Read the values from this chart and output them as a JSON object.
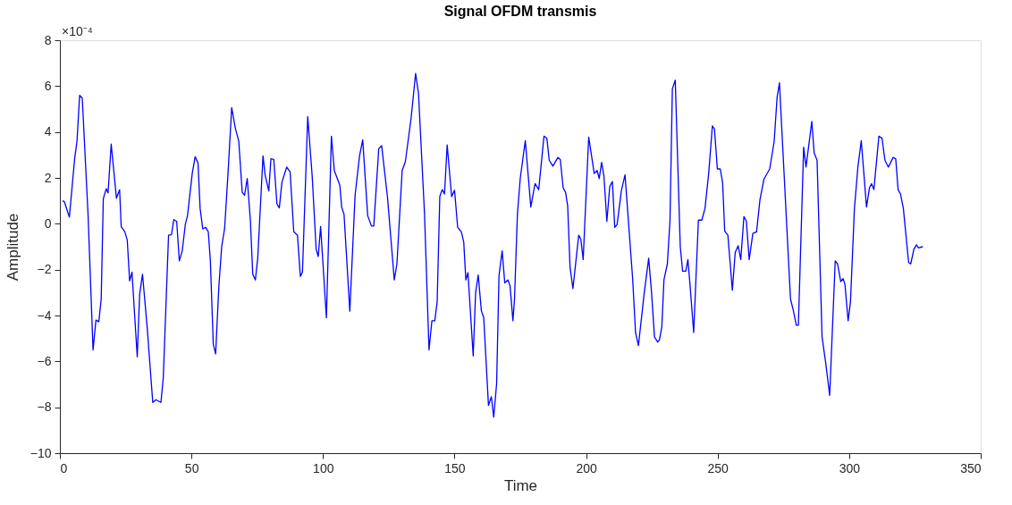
{
  "chart_data": {
    "type": "line",
    "title": "Signal OFDM transmis",
    "xlabel": "Time",
    "ylabel": "Amplitude",
    "annotations": [
      "×10⁻⁴"
    ],
    "xlim": [
      0,
      350
    ],
    "xticks": [
      0,
      50,
      100,
      150,
      200,
      250,
      300,
      350
    ],
    "ylim": [
      -10,
      8
    ],
    "yticks": [
      -10,
      -8,
      -6,
      -4,
      -2,
      0,
      2,
      4,
      6,
      8
    ],
    "grid": false,
    "marker": "none",
    "line_style": "solid",
    "series": [
      {
        "color": "#0000ff",
        "x": [
          1.0,
          1.7,
          3.6,
          5.6,
          6.5,
          7.5,
          8.5,
          10.7,
          12.6,
          13.7,
          14.8,
          15.7,
          16.5,
          17.6,
          18.3,
          19.5,
          21.5,
          22.7,
          23.3,
          24.7,
          25.6,
          26.5,
          27.4,
          29.4,
          30.3,
          31.4,
          33.2,
          35.3,
          36.5,
          38.4,
          39.3,
          41.3,
          42.4,
          43.3,
          44.4,
          45.4,
          46.5,
          47.7,
          48.5,
          50.3,
          51.4,
          52.5,
          53.3,
          54.3,
          55.4,
          56.4,
          57.2,
          58.3,
          59.2,
          60.4,
          61.5,
          62.6,
          63.9,
          65.3,
          66.7,
          68.0,
          69.3,
          70.2,
          71.2,
          72.4,
          73.3,
          74.3,
          75.2,
          77.2,
          78.0,
          79.4,
          80.2,
          81.3,
          82.5,
          83.4,
          84.4,
          86.2,
          87.5,
          88.9,
          90.3,
          91.4,
          92.2,
          94.2,
          95.9,
          97.4,
          98.2,
          99.1,
          101.3,
          103.2,
          104.3,
          106.4,
          107.1,
          108.0,
          110.2,
          112.2,
          113.9,
          115.1,
          117.0,
          118.4,
          119.3,
          121.2,
          122.3,
          124.5,
          127.1,
          128.1,
          130.1,
          131.3,
          133.5,
          135.2,
          136.3,
          138.6,
          140.3,
          141.4,
          142.5,
          143.4,
          144.4,
          145.3,
          146.2,
          147.2,
          148.9,
          150.0,
          151.2,
          152.6,
          153.5,
          154.3,
          155.1,
          157.1,
          158.0,
          159.0,
          160.2,
          161.1,
          162.9,
          164.0,
          164.9,
          166.0,
          166.9,
          168.1,
          169.1,
          170.3,
          171.1,
          172.2,
          172.8,
          173.9,
          175.0,
          176.9,
          179.0,
          180.6,
          182.0,
          184.0,
          185.1,
          186.0,
          187.4,
          189.3,
          190.2,
          191.3,
          192.2,
          193.0,
          193.9,
          195.0,
          197.2,
          198.0,
          198.9,
          201.0,
          203.1,
          204.2,
          205.0,
          205.9,
          206.8,
          207.9,
          209.0,
          210.0,
          210.9,
          211.8,
          213.4,
          214.8,
          217.7,
          218.8,
          219.9,
          222.1,
          223.8,
          224.9,
          226.0,
          227.2,
          227.9,
          228.8,
          229.6,
          230.9,
          231.9,
          232.8,
          233.9,
          235.8,
          236.7,
          237.9,
          238.7,
          239.5,
          240.9,
          242.7,
          244.0,
          245.2,
          246.6,
          248.0,
          248.8,
          249.9,
          251.0,
          251.9,
          252.7,
          253.9,
          255.6,
          256.7,
          257.8,
          258.8,
          260.0,
          260.9,
          262.0,
          263.4,
          264.8,
          266.1,
          267.6,
          269.8,
          271.5,
          272.6,
          273.5,
          277.7,
          278.8,
          279.9,
          280.7,
          282.7,
          283.6,
          285.8,
          286.7,
          287.8,
          289.7,
          291.1,
          292.6,
          294.7,
          295.6,
          296.8,
          297.7,
          298.4,
          299.6,
          300.5,
          302.0,
          303.3,
          304.6,
          306.6,
          307.7,
          308.5,
          309.4,
          311.3,
          312.5,
          313.6,
          314.9,
          316.7,
          317.7,
          318.6,
          319.5,
          320.6,
          322.6,
          323.4,
          324.6,
          325.6,
          326.3,
          328.0
        ],
        "values": [
          1.0,
          0.96,
          0.29,
          2.83,
          3.6,
          5.6,
          5.48,
          0.41,
          -5.5,
          -4.2,
          -4.27,
          -3.28,
          1.09,
          1.53,
          1.34,
          3.47,
          1.11,
          1.48,
          -0.13,
          -0.35,
          -0.71,
          -2.49,
          -2.11,
          -5.8,
          -3.09,
          -2.2,
          -4.55,
          -7.79,
          -7.67,
          -7.79,
          -6.71,
          -0.5,
          -0.48,
          0.18,
          0.1,
          -1.62,
          -1.18,
          -0.01,
          0.35,
          2.19,
          2.92,
          2.64,
          0.67,
          -0.22,
          -0.16,
          -0.35,
          -1.62,
          -5.25,
          -5.67,
          -2.77,
          -0.99,
          -0.22,
          2.19,
          5.06,
          4.16,
          3.59,
          1.37,
          1.24,
          1.97,
          0.16,
          -2.2,
          -2.45,
          -1.5,
          2.96,
          2.13,
          1.43,
          2.83,
          2.8,
          0.86,
          0.69,
          1.81,
          2.47,
          2.26,
          -0.35,
          -0.5,
          -2.29,
          -2.11,
          4.67,
          2.07,
          -1.11,
          -1.43,
          -0.12,
          -4.1,
          3.82,
          2.32,
          1.68,
          0.73,
          0.41,
          -3.81,
          1.24,
          2.96,
          3.66,
          0.35,
          -0.1,
          -0.1,
          3.27,
          3.4,
          1.18,
          -2.45,
          -1.75,
          2.32,
          2.7,
          4.61,
          6.55,
          5.69,
          0.41,
          -5.5,
          -4.23,
          -4.23,
          -3.4,
          1.18,
          1.49,
          1.3,
          3.44,
          1.18,
          1.46,
          -0.16,
          -0.35,
          -0.8,
          -2.45,
          -2.13,
          -5.76,
          -3.02,
          -2.23,
          -3.79,
          -4.1,
          -7.92,
          -7.54,
          -8.43,
          -6.97,
          -2.26,
          -1.18,
          -2.58,
          -2.45,
          -2.71,
          -4.23,
          -3.28,
          0.41,
          2.0,
          3.62,
          0.73,
          1.75,
          1.49,
          3.82,
          3.72,
          2.77,
          2.51,
          2.89,
          2.8,
          1.56,
          1.37,
          0.79,
          -1.88,
          -2.83,
          -0.5,
          -0.67,
          -1.56,
          3.78,
          2.19,
          2.32,
          1.97,
          2.68,
          2.07,
          0.1,
          1.62,
          1.84,
          -0.16,
          -0.03,
          1.43,
          2.13,
          -2.39,
          -4.74,
          -5.31,
          -3.02,
          -1.5,
          -3.02,
          -4.93,
          -5.16,
          -5.06,
          -4.49,
          -2.45,
          -1.75,
          0.16,
          5.88,
          6.26,
          -0.99,
          -2.07,
          -2.07,
          -1.56,
          -2.64,
          -4.74,
          0.16,
          0.16,
          0.67,
          2.19,
          4.26,
          4.13,
          2.39,
          2.39,
          1.79,
          -0.32,
          -0.5,
          -2.9,
          -1.24,
          -0.96,
          -1.56,
          0.31,
          0.13,
          -1.56,
          -0.42,
          -0.35,
          1.05,
          1.94,
          2.39,
          3.59,
          5.5,
          6.14,
          -3.28,
          -3.79,
          -4.42,
          -4.42,
          3.34,
          2.47,
          4.46,
          3.08,
          2.77,
          -4.93,
          -6.08,
          -7.48,
          -1.62,
          -1.75,
          -2.52,
          -2.39,
          -2.64,
          -4.23,
          -3.4,
          0.67,
          2.45,
          3.62,
          0.73,
          1.56,
          1.75,
          1.49,
          3.82,
          3.72,
          2.77,
          2.47,
          2.89,
          2.83,
          1.49,
          1.3,
          0.67,
          -1.69,
          -1.75,
          -1.11,
          -0.92,
          -1.05,
          -1.0
        ]
      }
    ]
  }
}
